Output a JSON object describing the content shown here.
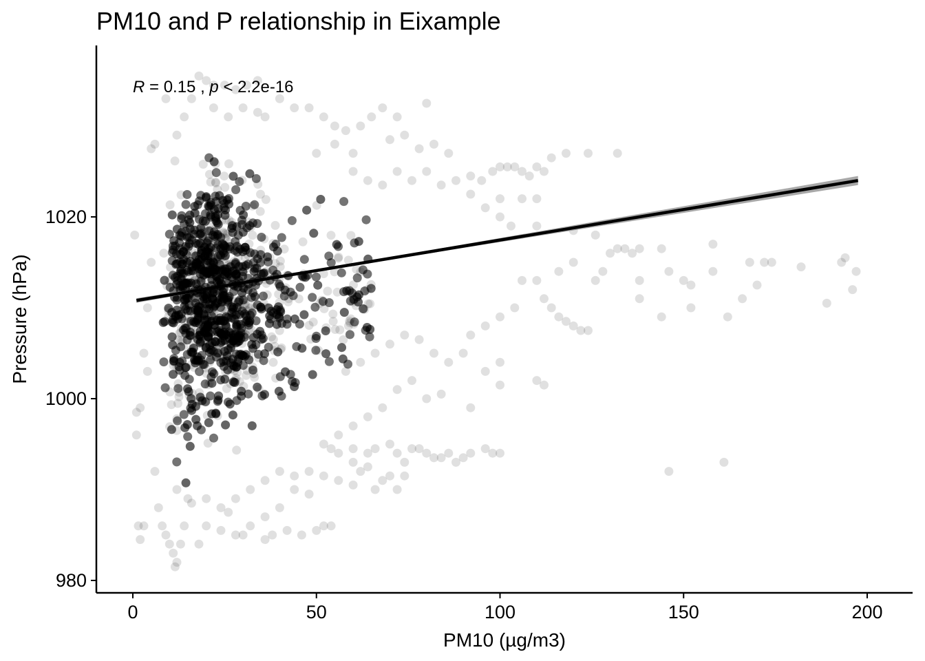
{
  "chart_data": {
    "type": "scatter",
    "title": "PM10 and P relationship in Eixample",
    "xlabel": "PM10 (µg/m3)",
    "ylabel": "Pressure (hPa)",
    "xlim": [
      -10,
      210
    ],
    "ylim": [
      978.5,
      1037
    ],
    "xticks": [
      0,
      50,
      100,
      150,
      200
    ],
    "yticks": [
      980,
      1000,
      1020
    ],
    "annotation": {
      "r_symbol": "R",
      "r_text": " = 0.15 , ",
      "p_symbol": "p",
      "p_text": " < 2.2e-16"
    },
    "regression": {
      "x": [
        1,
        197.5
      ],
      "y": [
        1010.8,
        1024.0
      ],
      "ci_halfwidth_at_end": 0.5,
      "color": "#000000",
      "band_color": "#999999"
    },
    "point_color": "#000000",
    "point_alpha": 0.12,
    "grid": false,
    "legend": "none",
    "series": [
      {
        "points": [
          [
            0.5,
            1018
          ],
          [
            1,
            998.5
          ],
          [
            1,
            996
          ],
          [
            1.5,
            986
          ],
          [
            2,
            984.5
          ],
          [
            3,
            986
          ],
          [
            2,
            999
          ],
          [
            3,
            1005
          ],
          [
            4,
            1010
          ],
          [
            5,
            1027.5
          ],
          [
            6,
            1028
          ],
          [
            5,
            1015
          ],
          [
            4,
            1003
          ],
          [
            6,
            992
          ],
          [
            7,
            988
          ],
          [
            8,
            986
          ],
          [
            9,
            985
          ],
          [
            10,
            984
          ],
          [
            11,
            983
          ],
          [
            11.5,
            981.5
          ],
          [
            12,
            982
          ],
          [
            13,
            984
          ],
          [
            14,
            986
          ],
          [
            15,
            989
          ],
          [
            9,
            1033
          ],
          [
            12,
            1029
          ],
          [
            14,
            1031
          ],
          [
            16,
            1033
          ],
          [
            18,
            1035.5
          ],
          [
            20,
            1035
          ],
          [
            22,
            1034.5
          ],
          [
            25,
            1034.5
          ],
          [
            28,
            1034
          ],
          [
            31,
            1034.5
          ],
          [
            34,
            1035
          ],
          [
            36,
            1031
          ],
          [
            40,
            1033
          ],
          [
            44,
            1032
          ],
          [
            48,
            1032
          ],
          [
            52,
            1031
          ],
          [
            55,
            1030
          ],
          [
            58,
            1029.5
          ],
          [
            62,
            1030
          ],
          [
            65,
            1031
          ],
          [
            68,
            1032
          ],
          [
            72,
            1031
          ],
          [
            74,
            1029
          ],
          [
            78,
            1027.5
          ],
          [
            82,
            1028
          ],
          [
            86,
            1027
          ],
          [
            80,
            1032.5
          ],
          [
            70,
            1028.5
          ],
          [
            60,
            1027
          ],
          [
            55,
            1028
          ],
          [
            50,
            1027
          ],
          [
            60,
            1025
          ],
          [
            64,
            1024
          ],
          [
            68,
            1023.5
          ],
          [
            72,
            1025
          ],
          [
            76,
            1024
          ],
          [
            80,
            1025
          ],
          [
            84,
            1023.5
          ],
          [
            88,
            1024
          ],
          [
            92,
            1024.5
          ],
          [
            95,
            1024
          ],
          [
            98,
            1025
          ],
          [
            100,
            1025.5
          ],
          [
            102,
            1025.5
          ],
          [
            104,
            1025.5
          ],
          [
            106,
            1025
          ],
          [
            108,
            1024.5
          ],
          [
            110,
            1025.5
          ],
          [
            112,
            1025
          ],
          [
            114,
            1026.5
          ],
          [
            92,
            1022.5
          ],
          [
            96,
            1021
          ],
          [
            100,
            1022
          ],
          [
            106,
            1022
          ],
          [
            110,
            1022
          ],
          [
            118,
            1027
          ],
          [
            124,
            1027
          ],
          [
            132,
            1027
          ],
          [
            100,
            1020
          ],
          [
            103,
            1019
          ],
          [
            110,
            1019
          ],
          [
            120,
            1018.5
          ],
          [
            126,
            1018
          ],
          [
            130,
            1016
          ],
          [
            132,
            1016.5
          ],
          [
            134,
            1016.5
          ],
          [
            136,
            1016
          ],
          [
            138,
            1016.5
          ],
          [
            144,
            1016.5
          ],
          [
            146,
            1014
          ],
          [
            150,
            1013
          ],
          [
            152,
            1012.5
          ],
          [
            158,
            1017
          ],
          [
            158,
            1014
          ],
          [
            168,
            1015
          ],
          [
            172,
            1015
          ],
          [
            174,
            1015
          ],
          [
            182,
            1014.5
          ],
          [
            193,
            1015
          ],
          [
            194,
            1015.5
          ],
          [
            197,
            1014
          ],
          [
            196,
            1012
          ],
          [
            189,
            1010.5
          ],
          [
            170,
            1012.5
          ],
          [
            166,
            1011
          ],
          [
            162,
            1009
          ],
          [
            152,
            1010
          ],
          [
            144,
            1009
          ],
          [
            138,
            1011
          ],
          [
            138,
            1013
          ],
          [
            126,
            1013
          ],
          [
            128,
            1014
          ],
          [
            120,
            1015
          ],
          [
            116,
            1014
          ],
          [
            110,
            1013
          ],
          [
            106,
            1013
          ],
          [
            112,
            1011
          ],
          [
            114,
            1010
          ],
          [
            116,
            1009
          ],
          [
            118,
            1008.5
          ],
          [
            120,
            1008
          ],
          [
            122,
            1007.5
          ],
          [
            124,
            1007.5
          ],
          [
            104,
            1010
          ],
          [
            100,
            1009
          ],
          [
            96,
            1008
          ],
          [
            92,
            1007
          ],
          [
            90,
            1005
          ],
          [
            86,
            1004
          ],
          [
            82,
            1005
          ],
          [
            78,
            1006.5
          ],
          [
            74,
            1007
          ],
          [
            70,
            1006
          ],
          [
            66,
            1005
          ],
          [
            62,
            1004
          ],
          [
            58,
            1003
          ],
          [
            96,
            1003
          ],
          [
            100,
            1004
          ],
          [
            100,
            1001.5
          ],
          [
            110,
            1002
          ],
          [
            112,
            1001.5
          ],
          [
            92,
            999
          ],
          [
            84,
            1000.5
          ],
          [
            80,
            1000
          ],
          [
            76,
            1002
          ],
          [
            72,
            1001
          ],
          [
            68,
            999
          ],
          [
            64,
            998
          ],
          [
            60,
            997
          ],
          [
            56,
            996
          ],
          [
            52,
            995
          ],
          [
            60,
            994.5
          ],
          [
            64,
            994
          ],
          [
            66,
            994.5
          ],
          [
            70,
            995
          ],
          [
            72,
            994
          ],
          [
            74,
            993
          ],
          [
            76,
            994.5
          ],
          [
            78,
            994.5
          ],
          [
            80,
            994
          ],
          [
            82,
            993.5
          ],
          [
            84,
            993.5
          ],
          [
            86,
            994
          ],
          [
            88,
            993
          ],
          [
            90,
            993.5
          ],
          [
            92,
            994
          ],
          [
            96,
            994.5
          ],
          [
            98,
            994
          ],
          [
            100,
            994
          ],
          [
            54,
            994.5
          ],
          [
            56,
            994
          ],
          [
            60,
            993
          ],
          [
            62,
            992
          ],
          [
            64,
            992.5
          ],
          [
            68,
            991
          ],
          [
            70,
            991.5
          ],
          [
            74,
            991.5
          ],
          [
            72,
            990
          ],
          [
            66,
            990
          ],
          [
            60,
            990.5
          ],
          [
            56,
            991
          ],
          [
            52,
            991.5
          ],
          [
            48,
            992
          ],
          [
            44,
            991.5
          ],
          [
            40,
            992
          ],
          [
            36,
            991
          ],
          [
            32,
            990
          ],
          [
            28,
            989
          ],
          [
            24,
            988
          ],
          [
            20,
            989
          ],
          [
            16,
            988.5
          ],
          [
            12,
            990
          ],
          [
            48,
            989.5
          ],
          [
            44,
            990
          ],
          [
            40,
            988
          ],
          [
            36,
            987
          ],
          [
            32,
            986
          ],
          [
            28,
            985
          ],
          [
            24,
            985.5
          ],
          [
            20,
            986
          ],
          [
            38,
            985
          ],
          [
            42,
            985.5
          ],
          [
            46,
            985
          ],
          [
            50,
            985.5
          ],
          [
            52,
            986
          ],
          [
            54,
            986
          ],
          [
            36,
            984.5
          ],
          [
            30,
            985
          ],
          [
            26,
            987.5
          ],
          [
            18,
            984
          ],
          [
            146,
            992
          ],
          [
            161,
            993
          ],
          [
            22,
            1032
          ],
          [
            26,
            1031
          ],
          [
            30,
            1032
          ],
          [
            34,
            1031.5
          ]
        ]
      }
    ]
  }
}
